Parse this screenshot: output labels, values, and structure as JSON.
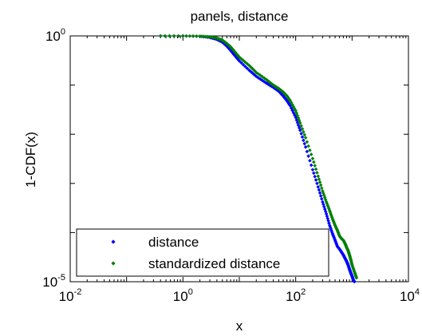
{
  "chart_data": {
    "type": "scatter",
    "title": "panels, distance",
    "xlabel": "x",
    "ylabel": "1-CDF(x)",
    "xscale": "log",
    "yscale": "log",
    "xlim": [
      0.01,
      10000
    ],
    "ylim": [
      1e-05,
      1
    ],
    "x_ticks": [
      {
        "base": "10",
        "exp": "-2"
      },
      {
        "base": "10",
        "exp": "0"
      },
      {
        "base": "10",
        "exp": "2"
      },
      {
        "base": "10",
        "exp": "4"
      }
    ],
    "y_ticks": [
      {
        "base": "10",
        "exp": "-5"
      },
      {
        "base": "10",
        "exp": "0"
      }
    ],
    "legend_position": "bottom-left",
    "series": [
      {
        "name": "distance",
        "color": "#0000ff",
        "marker": "diamond",
        "x": [
          0.4,
          1,
          2,
          3,
          4,
          5,
          6,
          7,
          8,
          10,
          15,
          20,
          30,
          40,
          50,
          60,
          70,
          80,
          100,
          120,
          150,
          200,
          250,
          300,
          350,
          400,
          450,
          500,
          550,
          600,
          650,
          700,
          750,
          800,
          850,
          900,
          950,
          1000,
          1050,
          1100
        ],
        "y": [
          1.0,
          0.998,
          0.98,
          0.93,
          0.85,
          0.75,
          0.62,
          0.51,
          0.42,
          0.31,
          0.2,
          0.15,
          0.11,
          0.09,
          0.075,
          0.06,
          0.048,
          0.038,
          0.022,
          0.012,
          0.0055,
          0.0019,
          0.00085,
          0.00042,
          0.00024,
          0.00014,
          9.5e-05,
          7e-05,
          5.2e-05,
          4.6e-05,
          4e-05,
          3.5e-05,
          3e-05,
          2.6e-05,
          2.2e-05,
          1.8e-05,
          1.5e-05,
          1.3e-05,
          1.1e-05,
          1e-05
        ]
      },
      {
        "name": "standardized distance",
        "color": "#008000",
        "marker": "diamond",
        "x": [
          0.4,
          1,
          2,
          3,
          4,
          5,
          6,
          7,
          8,
          10,
          15,
          20,
          30,
          40,
          50,
          60,
          70,
          80,
          100,
          120,
          150,
          200,
          250,
          300,
          350,
          400,
          450,
          500,
          550,
          600,
          650,
          700,
          750,
          800,
          850,
          900,
          950,
          1000,
          1100,
          1200
        ],
        "y": [
          1.0,
          0.999,
          0.99,
          0.96,
          0.9,
          0.82,
          0.7,
          0.6,
          0.5,
          0.37,
          0.25,
          0.18,
          0.13,
          0.1,
          0.085,
          0.072,
          0.06,
          0.048,
          0.03,
          0.017,
          0.0085,
          0.0032,
          0.0014,
          0.0007,
          0.00042,
          0.00028,
          0.00019,
          0.00014,
          0.00011,
          8.5e-05,
          7.5e-05,
          7e-05,
          6e-05,
          5e-05,
          4.3e-05,
          3.5e-05,
          2.8e-05,
          2.2e-05,
          1.6e-05,
          1.2e-05
        ]
      }
    ]
  }
}
